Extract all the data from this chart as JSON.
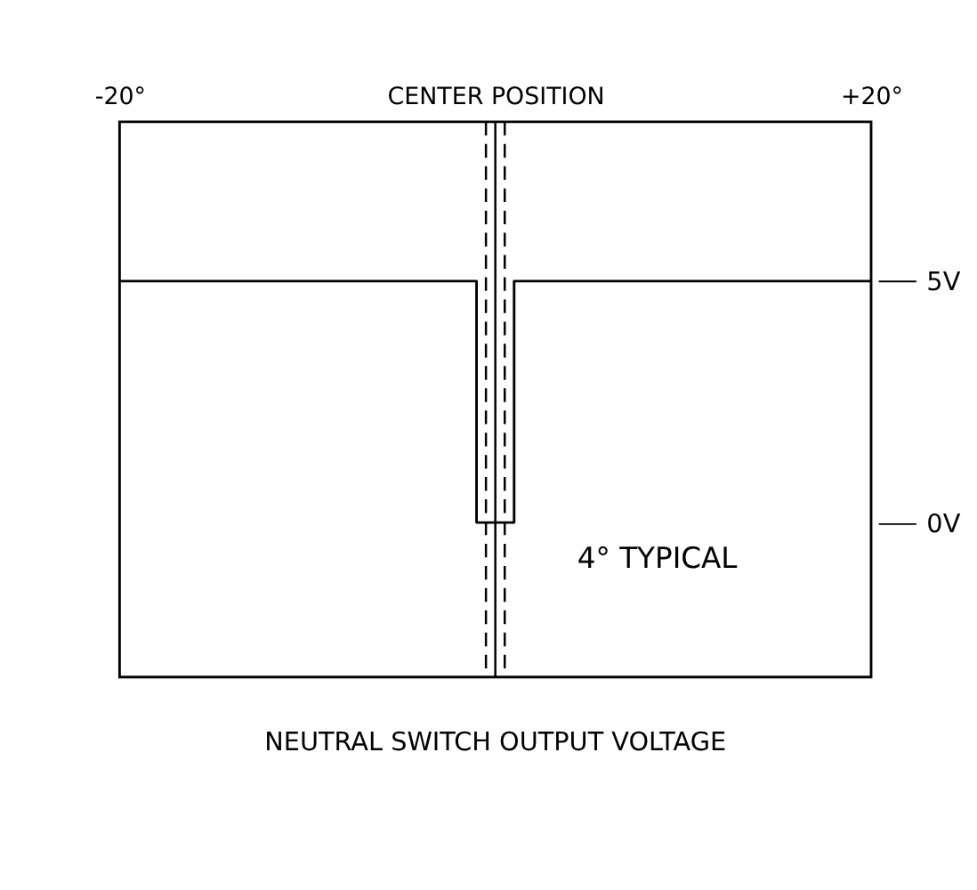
{
  "chart_data": {
    "type": "step",
    "title": "NEUTRAL SWITCH OUTPUT VOLTAGE",
    "x": [
      -20,
      -1,
      1,
      20
    ],
    "series": [
      {
        "color": "#000000",
        "values": [
          5,
          0,
          5,
          5
        ]
      }
    ],
    "xlim": [
      -20,
      20
    ],
    "xticks": [
      {
        "value": -20,
        "label": "-20°"
      },
      {
        "value": 0,
        "label": "CENTER POSITION"
      },
      {
        "value": 20,
        "label": "+20°"
      }
    ],
    "ylim": [
      -3.2,
      8.3
    ],
    "yticks": [
      {
        "value": 0,
        "label": "0V"
      },
      {
        "value": 5,
        "label": "5V"
      }
    ],
    "ref_lines": [
      {
        "axis": "x",
        "value": 0,
        "line_style": "solid",
        "color": "#000000"
      },
      {
        "axis": "x",
        "value": -0.5,
        "line_style": "dashed",
        "color": "#000000"
      },
      {
        "axis": "x",
        "value": 0.5,
        "line_style": "dashed",
        "color": "#000000"
      }
    ],
    "annotations": [
      "4° TYPICAL"
    ],
    "grid": false,
    "line_style": "solid",
    "marker": "none"
  }
}
